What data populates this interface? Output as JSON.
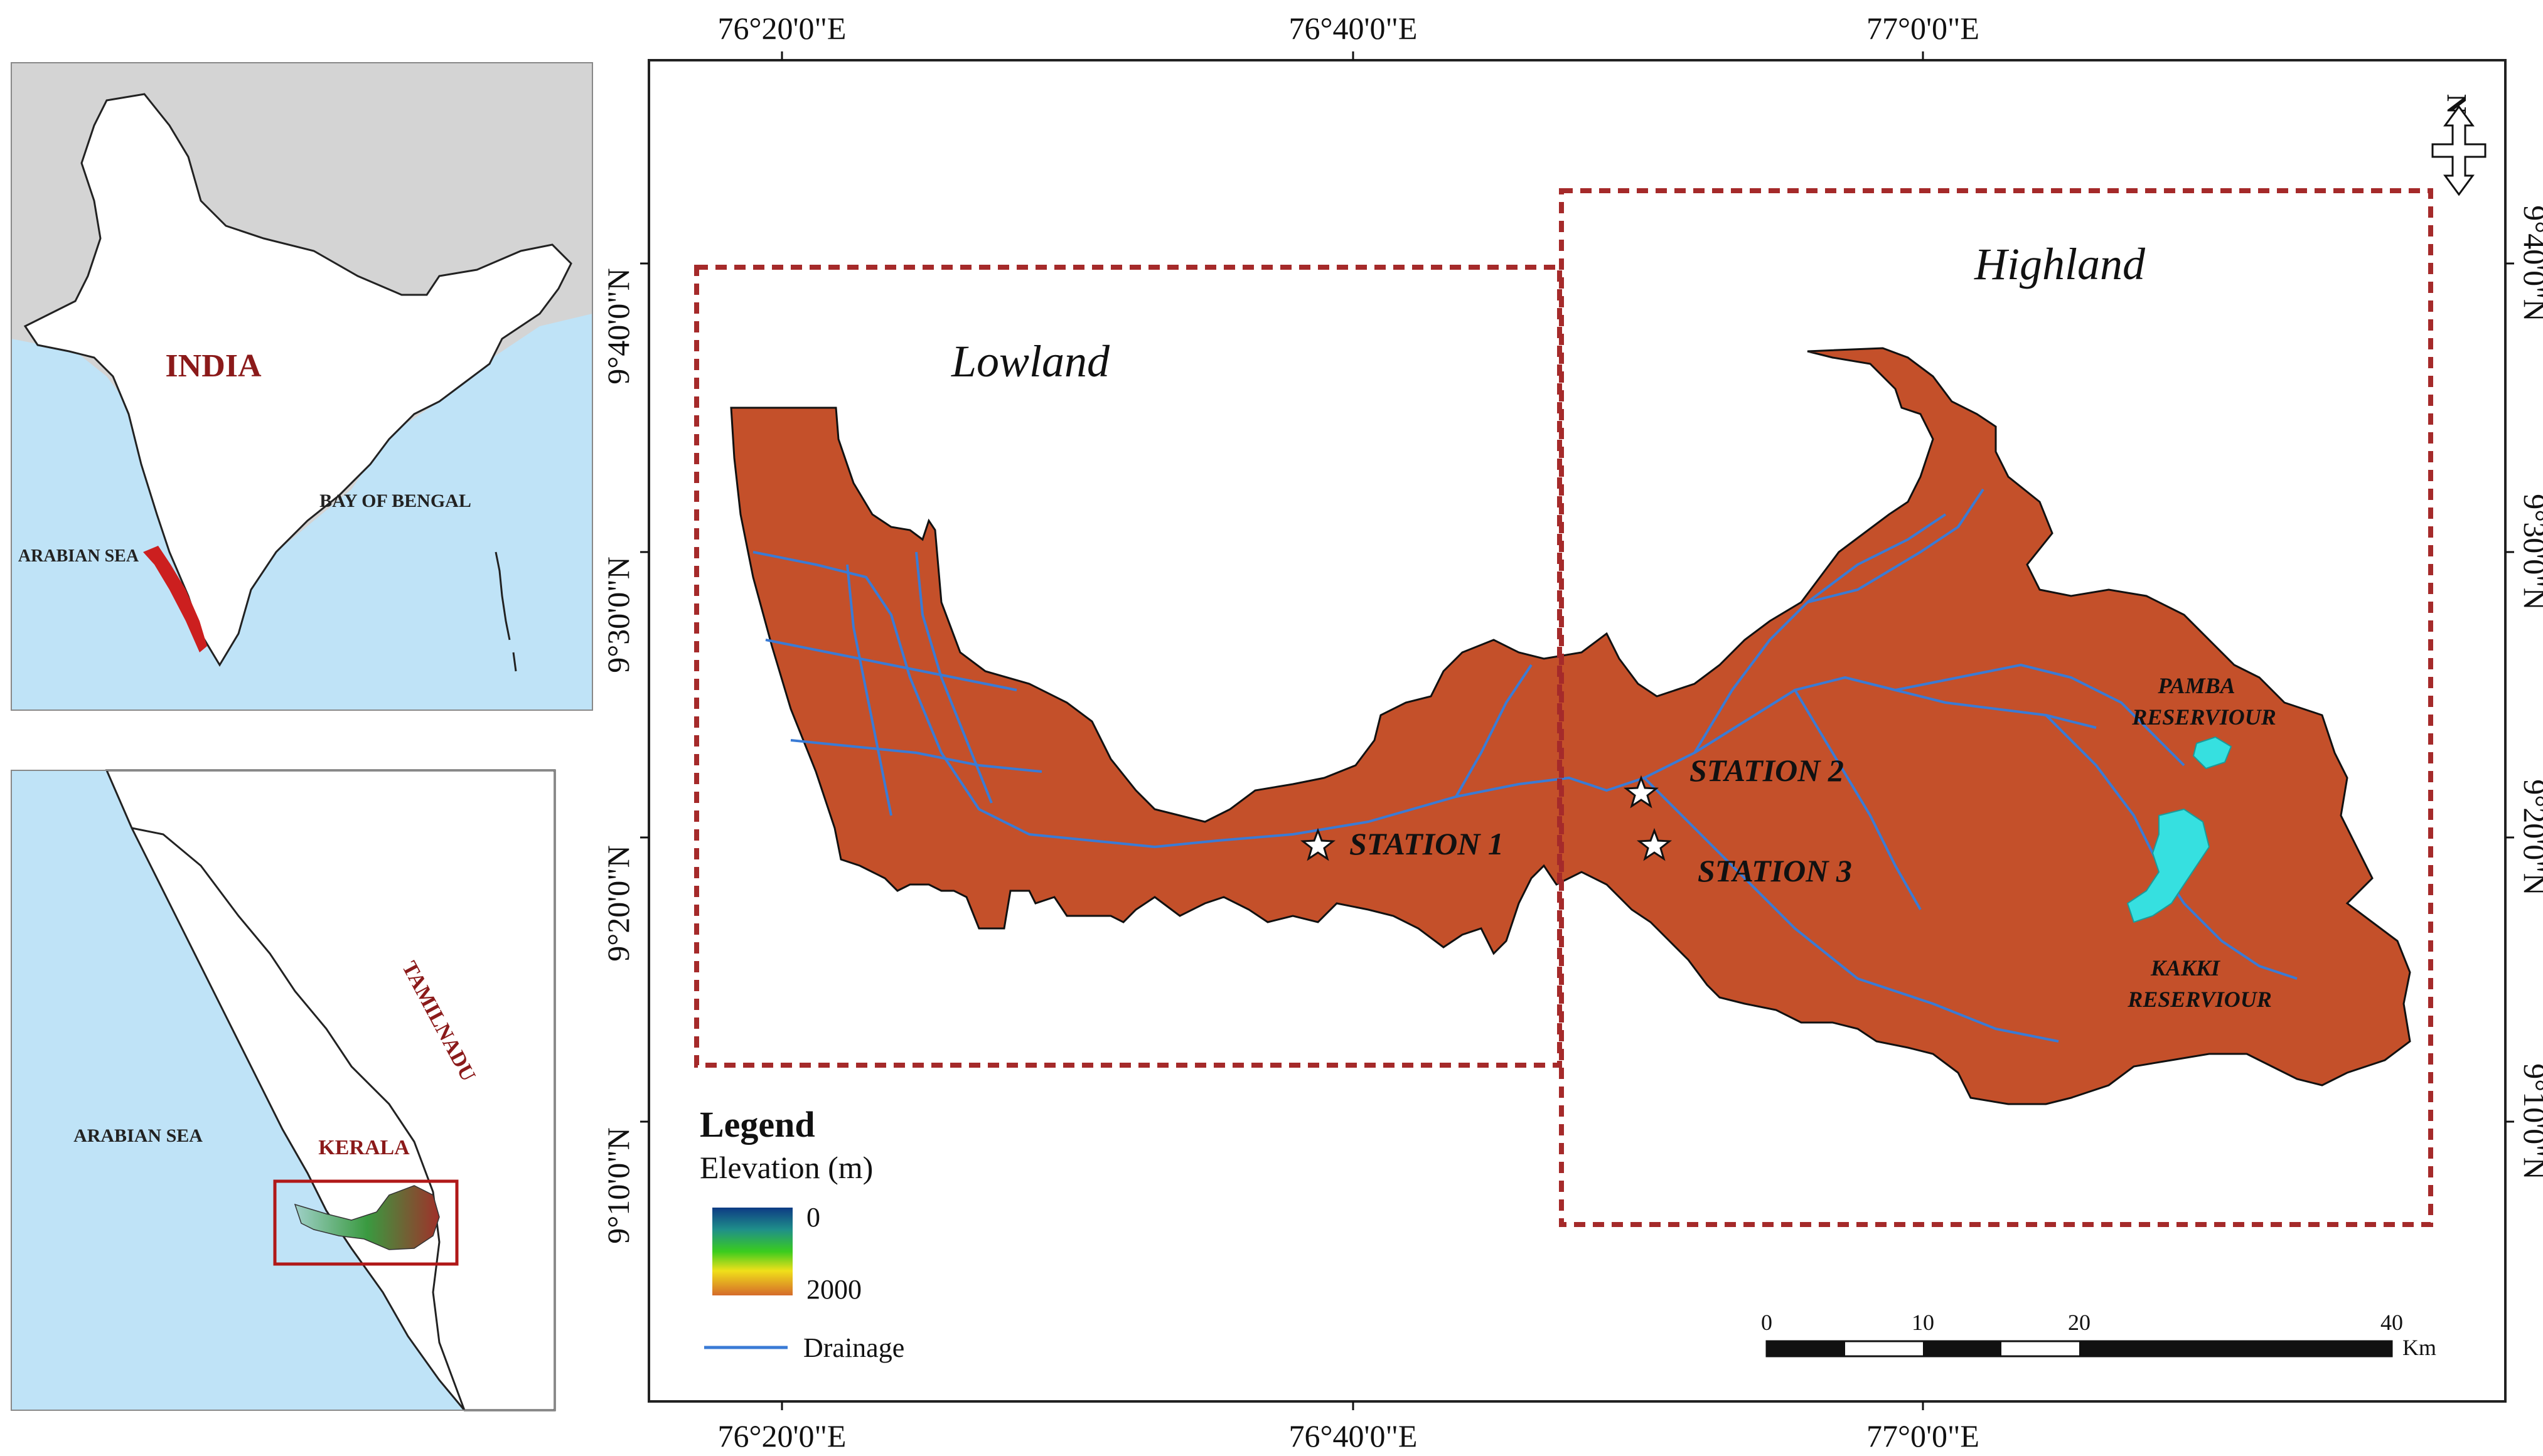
{
  "inset_india": {
    "country_label": "INDIA",
    "bay_label": "BAY OF BENGAL",
    "sea_label": "ARABIAN SEA"
  },
  "inset_kerala": {
    "sea_label": "ARABIAN SEA",
    "state_label": "KERALA",
    "neighbor_label": "TAMILNADU"
  },
  "main_map": {
    "top_ticks": [
      "76°20'0\"E",
      "76°40'0\"E",
      "77°0'0\"E"
    ],
    "bottom_ticks": [
      "76°20'0\"E",
      "76°40'0\"E",
      "77°0'0\"E"
    ],
    "left_ticks": [
      "9°40'0\"N",
      "9°30'0\"N",
      "9°20'0\"N",
      "9°10'0\"N"
    ],
    "right_ticks": [
      "9°40'0\"N",
      "9°30'0\"N",
      "9°20'0\"N",
      "9°10'0\"N"
    ],
    "lowland_label": "Lowland",
    "highland_label": "Highland",
    "stations": [
      "STATION 1",
      "STATION 2",
      "STATION 3"
    ],
    "reservoirs": [
      {
        "line1": "PAMBA",
        "line2": "RESERVIOUR"
      },
      {
        "line1": "KAKKI",
        "line2": "RESERVIOUR"
      }
    ],
    "north_arrow": "N"
  },
  "legend": {
    "title": "Legend",
    "subtitle": "Elevation (m)",
    "min_value": "0",
    "max_value": "2000",
    "drainage_label": "Drainage"
  },
  "scale_bar": {
    "ticks": [
      "0",
      "10",
      "20",
      "40"
    ],
    "unit": "Km"
  },
  "colors": {
    "sea": "#bfe3f7",
    "land_gray": "#d4d4d4",
    "kerala_red": "#cc1f1f",
    "box_red": "#a52a2a",
    "label_red": "#8b1a1a",
    "drainage": "#3a7bd5",
    "reservoir": "#36e0e0"
  }
}
